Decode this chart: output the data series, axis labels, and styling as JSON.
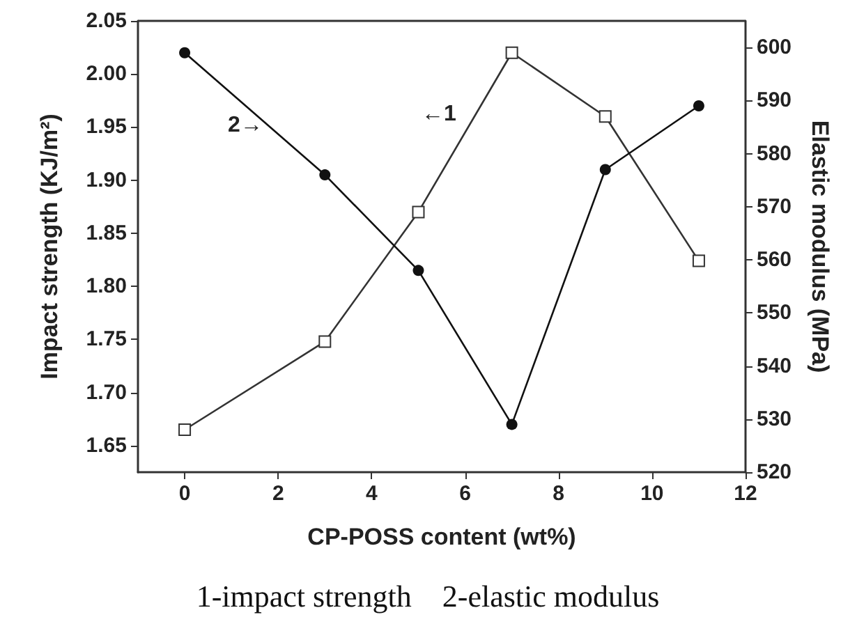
{
  "chart_data": {
    "type": "line",
    "xlabel": "CP-POSS content (wt%)",
    "ylabel": "Impact strength (KJ/m²)",
    "y2label": "Elastic modulus (MPa)",
    "x": [
      0,
      3,
      5,
      7,
      9,
      11
    ],
    "series": [
      {
        "color": "#333333",
        "marker": "square",
        "values": [
          1.665,
          1.748,
          1.87,
          2.02,
          1.96,
          1.824
        ]
      },
      {
        "color": "#111111",
        "marker": "circle",
        "axis": "y2",
        "values": [
          599,
          576,
          558,
          529,
          577,
          589
        ]
      }
    ],
    "xlim": [
      -1,
      12
    ],
    "xticks": [
      0,
      2,
      4,
      6,
      8,
      10,
      12
    ],
    "ylim": [
      1.625,
      2.05
    ],
    "yticks": [
      {
        "value": 1.65,
        "label": "1.65"
      },
      {
        "value": 1.7,
        "label": "1.70"
      },
      {
        "value": 1.75,
        "label": "1.75"
      },
      {
        "value": 1.8,
        "label": "1.80"
      },
      {
        "value": 1.85,
        "label": "1.85"
      },
      {
        "value": 1.9,
        "label": "1.90"
      },
      {
        "value": 1.95,
        "label": "1.95"
      },
      {
        "value": 2.0,
        "label": "2.00"
      },
      {
        "value": 2.05,
        "label": "2.05"
      }
    ],
    "y2lim": [
      520,
      605
    ],
    "y2ticks": [
      520,
      530,
      540,
      550,
      560,
      570,
      580,
      590,
      600
    ],
    "annotations": [
      "2→",
      "←1",
      "1-impact strength    2-elastic modulus"
    ],
    "grid": false,
    "line_style": "solid"
  }
}
